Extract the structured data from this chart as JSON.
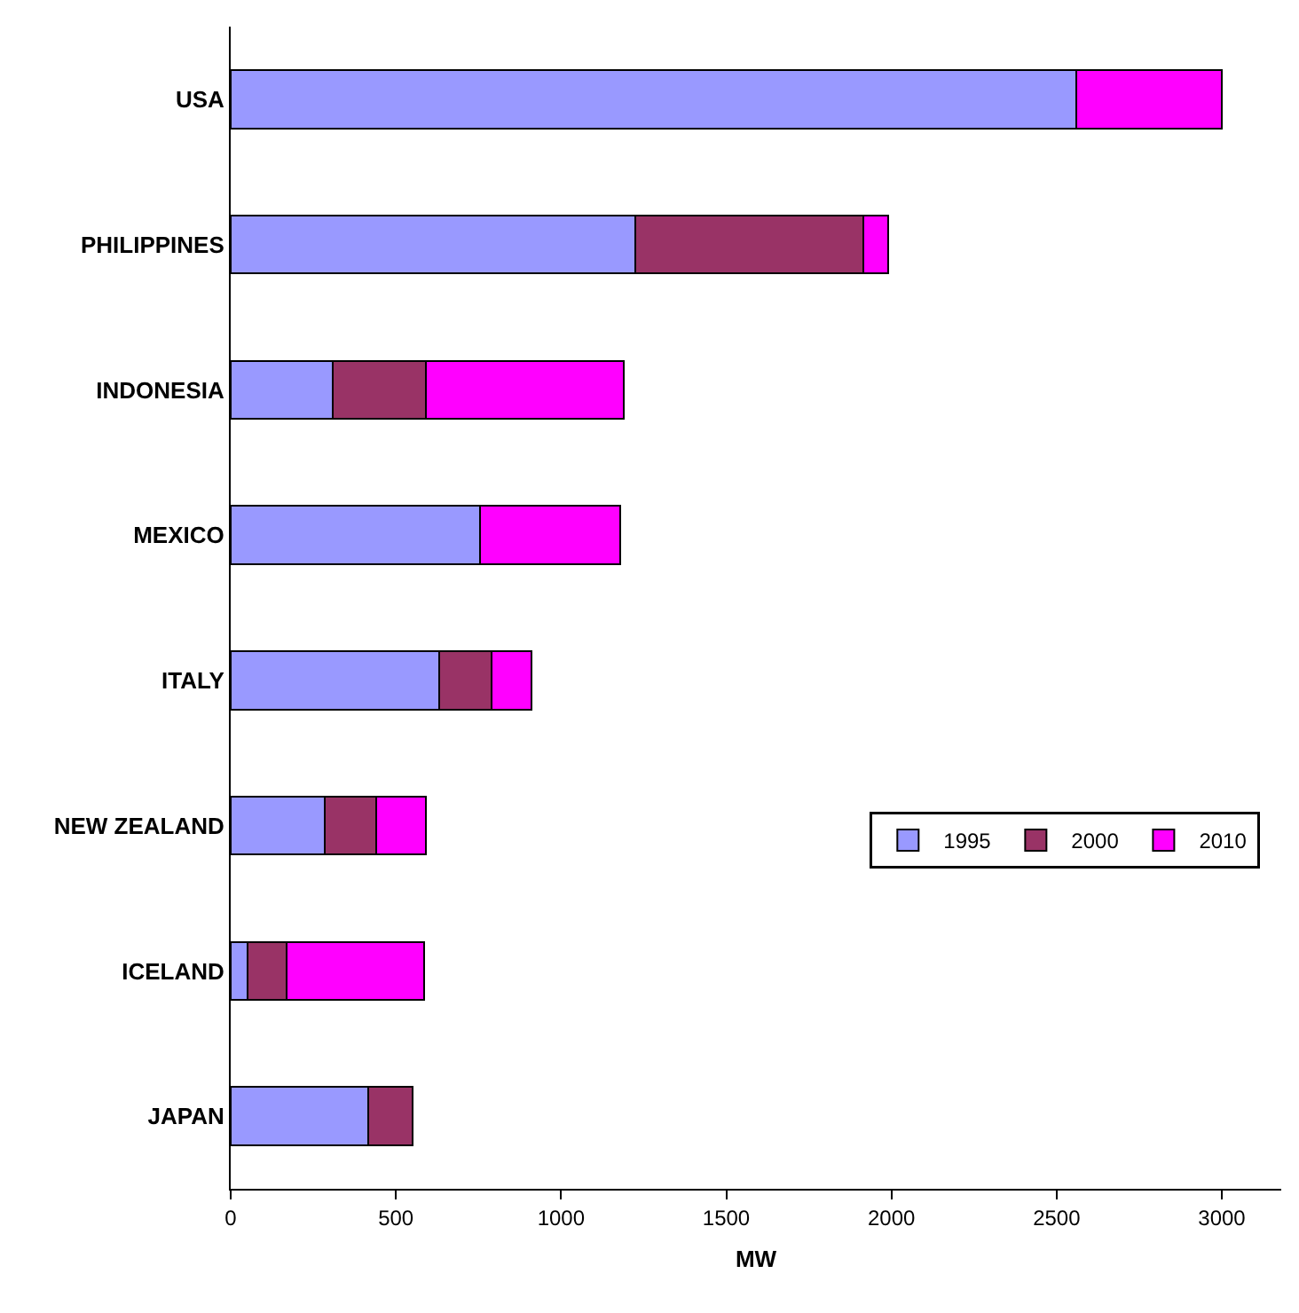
{
  "chart_data": {
    "type": "bar",
    "orientation": "horizontal",
    "stacked": true,
    "xlabel": "MW",
    "categories": [
      "USA",
      "PHILIPPINES",
      "INDONESIA",
      "MEXICO",
      "ITALY",
      "NEW ZEALAND",
      "ICELAND",
      "JAPAN"
    ],
    "series": [
      {
        "name": "1995",
        "color": "#9999ff",
        "values": [
          2560,
          1225,
          310,
          755,
          630,
          285,
          50,
          415
        ]
      },
      {
        "name": "2000",
        "color": "#993366",
        "values": [
          null,
          690,
          280,
          null,
          160,
          155,
          120,
          135
        ]
      },
      {
        "name": "2010",
        "color": "#ff00ff",
        "values": [
          440,
          75,
          600,
          425,
          120,
          150,
          415,
          null
        ]
      }
    ],
    "xlim": [
      0,
      3180
    ],
    "xticks": [
      0,
      500,
      1000,
      1500,
      2000,
      2500,
      3000
    ],
    "grid": false,
    "legend": "right"
  }
}
